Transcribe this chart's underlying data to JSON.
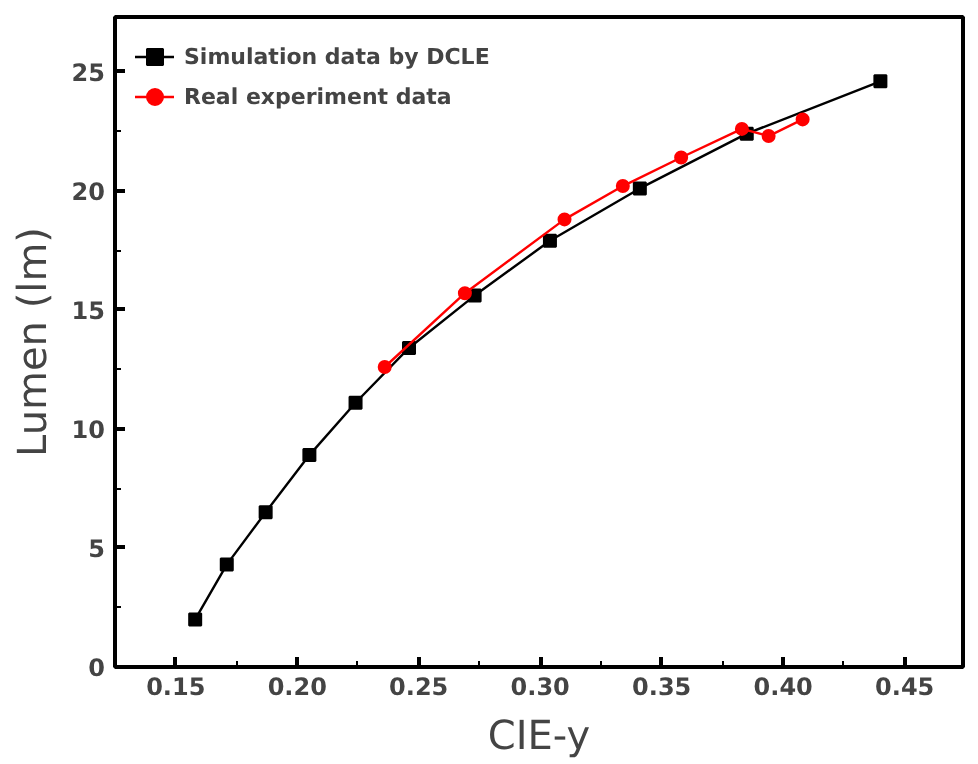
{
  "chart_data": {
    "type": "line",
    "xlabel": "CIE-y",
    "ylabel": "Lumen (lm)",
    "xlim": [
      0.125,
      0.474
    ],
    "ylim": [
      0,
      27.3
    ],
    "xticks": [
      0.15,
      {
        "value": 0.2,
        "label": "0.20"
      },
      0.25,
      {
        "value": 0.3,
        "label": "0.30"
      },
      0.35,
      {
        "value": 0.4,
        "label": "0.40"
      },
      0.45
    ],
    "yticks": [
      0,
      5,
      10,
      15,
      20,
      25
    ],
    "legend": "top left",
    "grid": false,
    "series": [
      {
        "name": "Simulation data by DCLE",
        "color": "#000000",
        "marker": "square",
        "x": [
          0.158,
          0.171,
          0.187,
          0.205,
          0.224,
          0.246,
          0.273,
          0.304,
          0.341,
          0.385,
          0.44
        ],
        "values": [
          2.0,
          4.3,
          6.5,
          8.9,
          11.1,
          13.4,
          15.6,
          17.9,
          20.1,
          22.4,
          24.6
        ]
      },
      {
        "name": "Real experiment data",
        "color": "#ff0000",
        "marker": "circle",
        "x": [
          0.236,
          0.269,
          0.31,
          0.334,
          0.358,
          0.383,
          0.394,
          0.408
        ],
        "values": [
          12.6,
          15.7,
          18.8,
          20.2,
          21.4,
          22.6,
          22.3,
          23.0
        ]
      }
    ]
  }
}
